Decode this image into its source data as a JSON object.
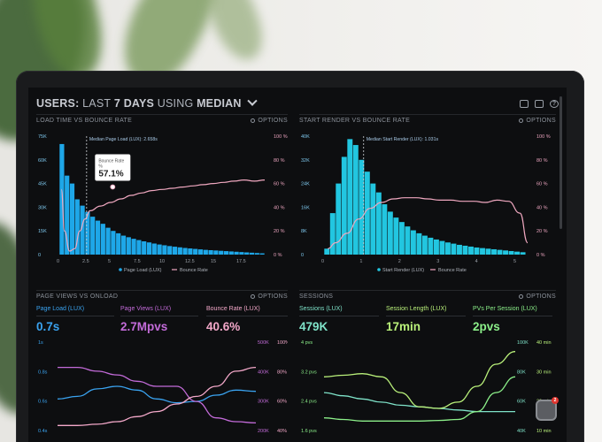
{
  "header": {
    "title_prefix": "USERS:",
    "title_mid1": "LAST",
    "title_bold1": "7 DAYS",
    "title_mid2": "USING",
    "title_bold2": "MEDIAN",
    "icons": [
      "monitor-icon",
      "image-icon",
      "help-icon"
    ],
    "help_glyph": "?"
  },
  "panels": {
    "load_time": {
      "title": "LOAD TIME VS BOUNCE RATE",
      "options_label": "OPTIONS",
      "median_marker": "Median Page Load (LUX): 2.658s",
      "tooltip_label": "Bounce Rate",
      "tooltip_sub": "%",
      "tooltip_value": "57.1%",
      "legend": [
        "Page Load (LUX)",
        "Bounce Rate"
      ]
    },
    "start_render": {
      "title": "START RENDER VS BOUNCE RATE",
      "options_label": "OPTIONS",
      "median_marker": "Median Start Render (LUX): 1.031s",
      "legend": [
        "Start Render (LUX)",
        "Bounce Rate"
      ]
    },
    "page_views": {
      "title": "PAGE VIEWS VS ONLOAD",
      "options_label": "OPTIONS",
      "metrics": [
        {
          "label": "Page Load (LUX)",
          "value": "0.7s",
          "color": "#3aa3f0"
        },
        {
          "label": "Page Views (LUX)",
          "value": "2.7Mpvs",
          "color": "#c36bd9"
        },
        {
          "label": "Bounce Rate (LUX)",
          "value": "40.6%",
          "color": "#f3a8c9"
        }
      ]
    },
    "sessions": {
      "title": "SESSIONS",
      "options_label": "OPTIONS",
      "metrics": [
        {
          "label": "Sessions (LUX)",
          "value": "479K",
          "color": "#7fe3c9"
        },
        {
          "label": "Session Length (LUX)",
          "value": "17min",
          "color": "#b9f07a"
        },
        {
          "label": "PVs Per Session (LUX)",
          "value": "2pvs",
          "color": "#8cf08a"
        }
      ]
    }
  },
  "chat": {
    "badge": "2"
  },
  "colors": {
    "bar_blue": "#1ea7e8",
    "bar_cyan": "#22c6e0",
    "bounce_pink": "#f0a8c0",
    "screen_bg": "#0d0e10"
  },
  "chart_data": [
    {
      "type": "bar",
      "title": "LOAD TIME VS BOUNCE RATE",
      "x_ticks": [
        "0",
        "2.5",
        "5",
        "7.5",
        "10",
        "12.5",
        "15",
        "17.5"
      ],
      "y_ticks_left": [
        "75K",
        "60K",
        "45K",
        "30K",
        "15K",
        "0"
      ],
      "y_ticks_right": [
        "100 %",
        "80 %",
        "60 %",
        "40 %",
        "20 %",
        "0 %"
      ],
      "xlim": [
        0,
        20
      ],
      "ylim": [
        0,
        75000
      ],
      "series": [
        {
          "name": "Page Load (LUX)",
          "kind": "bar",
          "bar_width": 0.5,
          "x": [
            0.25,
            0.75,
            1.25,
            1.75,
            2.25,
            2.75,
            3.25,
            3.75,
            4.25,
            4.75,
            5.25,
            5.75,
            6.25,
            6.75,
            7.25,
            7.75,
            8.25,
            8.75,
            9.25,
            9.75,
            10.25,
            10.75,
            11.25,
            11.75,
            12.25,
            12.75,
            13.25,
            13.75,
            14.25,
            14.75,
            15.25,
            15.75,
            16.25,
            16.75,
            17.25,
            17.75,
            18.25,
            18.75,
            19.25,
            19.75
          ],
          "values": [
            70000,
            50000,
            45000,
            35000,
            31000,
            27000,
            24000,
            21500,
            19500,
            17000,
            15000,
            13500,
            12000,
            11000,
            10000,
            9200,
            8400,
            7700,
            7000,
            6400,
            5900,
            5400,
            5000,
            4600,
            4200,
            3900,
            3600,
            3300,
            3000,
            2800,
            2600,
            2400,
            2200,
            2000,
            1800,
            1600,
            1400,
            1200,
            1000,
            800
          ]
        },
        {
          "name": "Bounce Rate",
          "kind": "line",
          "x": [
            0.2,
            0.5,
            1,
            1.5,
            2,
            2.5,
            3,
            4,
            5,
            6,
            7,
            8,
            9,
            10,
            11,
            12,
            13,
            14,
            15,
            16,
            17,
            18,
            19,
            20
          ],
          "values": [
            55,
            20,
            3,
            5,
            20,
            30,
            37,
            41,
            44,
            47,
            50,
            52,
            54,
            55,
            56,
            57,
            58,
            59,
            60,
            61,
            62,
            63,
            62,
            63
          ]
        }
      ],
      "median_x": 2.658
    },
    {
      "type": "bar",
      "title": "START RENDER VS BOUNCE RATE",
      "x_ticks": [
        "0",
        "1",
        "2",
        "3",
        "4",
        "5"
      ],
      "y_ticks_left": [
        "40K",
        "32K",
        "24K",
        "16K",
        "8K",
        "0"
      ],
      "y_ticks_right": [
        "100 %",
        "80 %",
        "60 %",
        "40 %",
        "20 %",
        "0 %"
      ],
      "xlim": [
        0,
        5.3
      ],
      "ylim": [
        0,
        40000
      ],
      "series": [
        {
          "name": "Start Render (LUX)",
          "kind": "bar",
          "bar_width": 0.15,
          "x": [
            0.075,
            0.225,
            0.375,
            0.525,
            0.675,
            0.825,
            0.975,
            1.125,
            1.275,
            1.425,
            1.575,
            1.725,
            1.875,
            2.025,
            2.175,
            2.325,
            2.475,
            2.625,
            2.775,
            2.925,
            3.075,
            3.225,
            3.375,
            3.525,
            3.675,
            3.825,
            3.975,
            4.125,
            4.275,
            4.425,
            4.575,
            4.725,
            4.875,
            5.025,
            5.175
          ],
          "values": [
            2000,
            14000,
            24000,
            33000,
            39000,
            37000,
            32000,
            28000,
            24000,
            21000,
            17000,
            14500,
            12500,
            11000,
            9500,
            8200,
            7200,
            6400,
            5700,
            5100,
            4600,
            4100,
            3700,
            3300,
            3000,
            2700,
            2400,
            2200,
            2000,
            1800,
            1600,
            1400,
            1200,
            1000,
            800
          ]
        },
        {
          "name": "Bounce Rate",
          "kind": "line",
          "x": [
            0.1,
            0.3,
            0.6,
            0.9,
            1.2,
            1.5,
            1.8,
            2.1,
            2.4,
            2.7,
            3,
            3.3,
            3.6,
            3.9,
            4.2,
            4.5,
            4.8,
            5.1,
            5.3
          ],
          "values": [
            5,
            10,
            18,
            30,
            39,
            44,
            47,
            48,
            48,
            47,
            46,
            46,
            45,
            45,
            44,
            46,
            45,
            35,
            10
          ]
        }
      ],
      "median_x": 1.031
    },
    {
      "type": "line",
      "title": "PAGE VIEWS VS ONLOAD",
      "y_ticks_left": [
        "1s",
        "0.8s",
        "0.6s",
        "0.4s"
      ],
      "y_ticks_right_a": [
        "500K",
        "400K",
        "300K",
        "200K"
      ],
      "y_ticks_right_b": [
        "100%",
        "80%",
        "60%",
        "40%"
      ],
      "x": [
        0,
        1,
        2,
        3,
        4,
        5,
        6,
        7,
        8,
        9,
        10
      ],
      "ylim": [
        0.35,
        1.05
      ],
      "series": [
        {
          "name": "Page Load (LUX)",
          "color": "#3aa3f0",
          "values": [
            0.6,
            0.62,
            0.68,
            0.7,
            0.67,
            0.6,
            0.57,
            0.58,
            0.63,
            0.67,
            0.66
          ]
        },
        {
          "name": "Page Views (LUX)",
          "color": "#c36bd9",
          "values": [
            0.85,
            0.85,
            0.82,
            0.79,
            0.74,
            0.7,
            0.7,
            0.58,
            0.45,
            0.42,
            0.41
          ]
        },
        {
          "name": "Bounce Rate (LUX)",
          "color": "#f3a8c9",
          "values": [
            0.39,
            0.39,
            0.4,
            0.42,
            0.46,
            0.5,
            0.56,
            0.62,
            0.7,
            0.82,
            0.85
          ]
        }
      ]
    },
    {
      "type": "line",
      "title": "SESSIONS",
      "y_ticks_left": [
        "4 pvs",
        "3.2 pvs",
        "2.4 pvs",
        "1.6 pvs"
      ],
      "y_ticks_right_a": [
        "100K",
        "80K",
        "60K",
        "40K"
      ],
      "y_ticks_right_b": [
        "40 min",
        "30 min",
        "20 min",
        "10 min"
      ],
      "x": [
        0,
        1,
        2,
        3,
        4,
        5,
        6,
        7,
        8,
        9,
        10
      ],
      "ylim": [
        1.4,
        4.2
      ],
      "series": [
        {
          "name": "Sessions (LUX)",
          "color": "#7fe3c9",
          "values": [
            2.6,
            2.5,
            2.4,
            2.3,
            2.2,
            2.15,
            2.1,
            2.05,
            2.0,
            2.0,
            2.0
          ]
        },
        {
          "name": "Session Length (LUX)",
          "color": "#b9f07a",
          "values": [
            3.1,
            3.15,
            3.2,
            3.1,
            2.6,
            2.15,
            2.1,
            2.3,
            2.8,
            3.5,
            3.9
          ]
        },
        {
          "name": "PVs Per Session (LUX)",
          "color": "#8cf08a",
          "values": [
            1.8,
            1.75,
            1.7,
            1.7,
            1.7,
            1.7,
            1.72,
            1.75,
            2.0,
            2.6,
            3.1
          ]
        }
      ]
    }
  ]
}
